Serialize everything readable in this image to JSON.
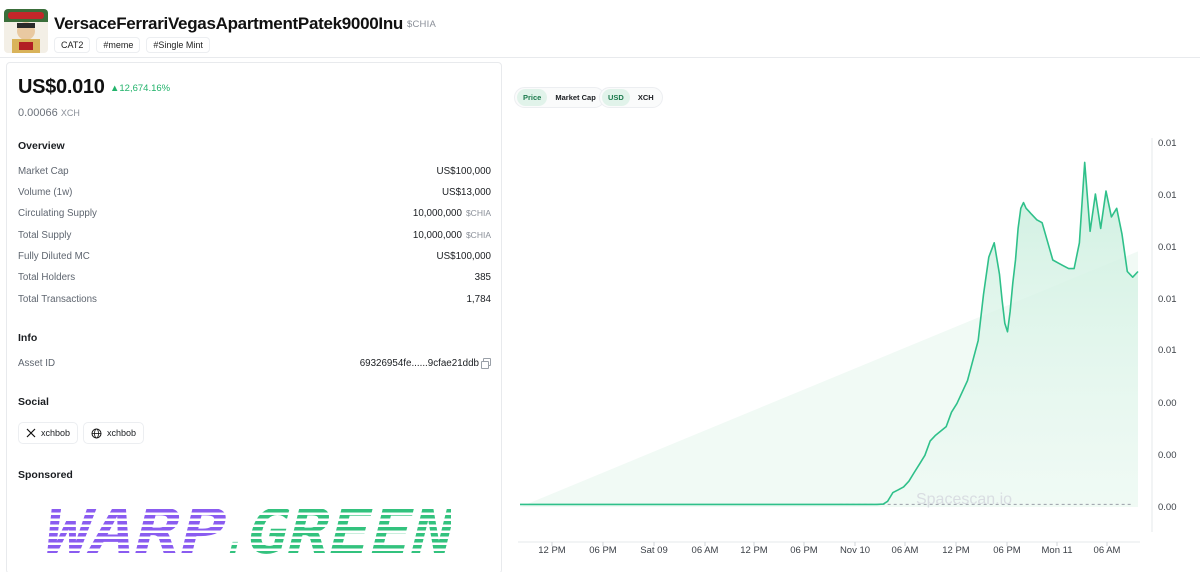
{
  "header": {
    "title": "VersaceFerrariVegasApartmentPatek9000Inu",
    "ticker": "$CHIA",
    "tags": [
      "CAT2",
      "#meme",
      "#Single Mint"
    ],
    "logo_icon": "token-avatar-icon"
  },
  "price": {
    "usd": "US$0.010",
    "change": "▲12,674.16%",
    "xch_value": "0.00066",
    "xch_unit": "XCH",
    "change_color": "#22b36b"
  },
  "overview": {
    "title": "Overview",
    "rows": [
      {
        "label": "Market Cap",
        "value": "US$100,000",
        "unit": ""
      },
      {
        "label": "Volume (1w)",
        "value": "US$13,000",
        "unit": ""
      },
      {
        "label": "Circulating Supply",
        "value": "10,000,000",
        "unit": "$CHIA"
      },
      {
        "label": "Total Supply",
        "value": "10,000,000",
        "unit": "$CHIA"
      },
      {
        "label": "Fully Diluted MC",
        "value": "US$100,000",
        "unit": ""
      },
      {
        "label": "Total Holders",
        "value": "385",
        "unit": ""
      },
      {
        "label": "Total Transactions",
        "value": "1,784",
        "unit": ""
      }
    ]
  },
  "info": {
    "title": "Info",
    "asset_id_label": "Asset ID",
    "asset_id_value": "69326954fe......9cfae21ddb",
    "copy_icon": "copy-icon"
  },
  "social": {
    "title": "Social",
    "links": [
      {
        "icon": "x-logo-icon",
        "label": "xchbob"
      },
      {
        "icon": "globe-icon",
        "label": "xchbob"
      }
    ]
  },
  "sponsored": {
    "title": "Sponsored",
    "banner_text": "WARP.GREEN"
  },
  "toggles": {
    "metric": {
      "options": [
        "Price",
        "Market Cap"
      ],
      "active": "Price"
    },
    "currency": {
      "options": [
        "USD",
        "XCH"
      ],
      "active": "USD"
    }
  },
  "chart_data": {
    "type": "area",
    "watermark": "Spacescan.io",
    "x_ticks": [
      "12 PM",
      "06 PM",
      "Sat 09",
      "06 AM",
      "12 PM",
      "06 PM",
      "Nov 10",
      "06 AM",
      "12 PM",
      "06 PM",
      "Mon 11",
      "06 AM"
    ],
    "y_ticks": [
      "0.01",
      "0.01",
      "0.01",
      "0.01",
      "0.01",
      "0.00",
      "0.00",
      "0.00"
    ],
    "ylim": [
      0,
      0.0125
    ],
    "baseline": 9e-05,
    "line_color": "#2fc08a",
    "fill_color": "#d8f3e7",
    "series": [
      {
        "x_hours": [
          0,
          10,
          20,
          30,
          40,
          45,
          47.5,
          48,
          49.5,
          52,
          54,
          55,
          56,
          57,
          58,
          59.5,
          60,
          60.5,
          61,
          62,
          64,
          65,
          66,
          67,
          68.2,
          69,
          70,
          71,
          72,
          73,
          74,
          75,
          76,
          77,
          78,
          80,
          81,
          82,
          84,
          86,
          87,
          88,
          89,
          90,
          90.5,
          91,
          91.5,
          92,
          92.5,
          93,
          93.5,
          94,
          94.5,
          95,
          95.5,
          96,
          96.5,
          97,
          98,
          100,
          101,
          102,
          103,
          104,
          105,
          106,
          107,
          108,
          109,
          110,
          111,
          112,
          113,
          114,
          115,
          116
        ],
        "values": [
          9e-05,
          9e-05,
          9e-05,
          9e-05,
          9e-05,
          9e-05,
          9e-05,
          9e-05,
          9e-05,
          9e-05,
          9e-05,
          9e-05,
          9e-05,
          9e-05,
          9e-05,
          9e-05,
          9e-05,
          9e-05,
          9e-05,
          9e-05,
          9e-05,
          9e-05,
          9e-05,
          9e-05,
          0.0001,
          0.0002,
          0.0005,
          0.0006,
          0.0007,
          0.0009,
          0.0012,
          0.0015,
          0.0018,
          0.0023,
          0.0025,
          0.0028,
          0.0033,
          0.0036,
          0.0044,
          0.0058,
          0.0074,
          0.0087,
          0.0092,
          0.0081,
          0.0072,
          0.0064,
          0.0061,
          0.0068,
          0.0078,
          0.0086,
          0.0097,
          0.0104,
          0.0106,
          0.0104,
          0.0103,
          0.0102,
          0.0101,
          0.01,
          0.0099,
          0.0086,
          0.0085,
          0.0084,
          0.0083,
          0.0083,
          0.0092,
          0.012,
          0.0096,
          0.0109,
          0.0097,
          0.011,
          0.0101,
          0.0104,
          0.0095,
          0.0082,
          0.008,
          0.0082
        ]
      }
    ]
  }
}
